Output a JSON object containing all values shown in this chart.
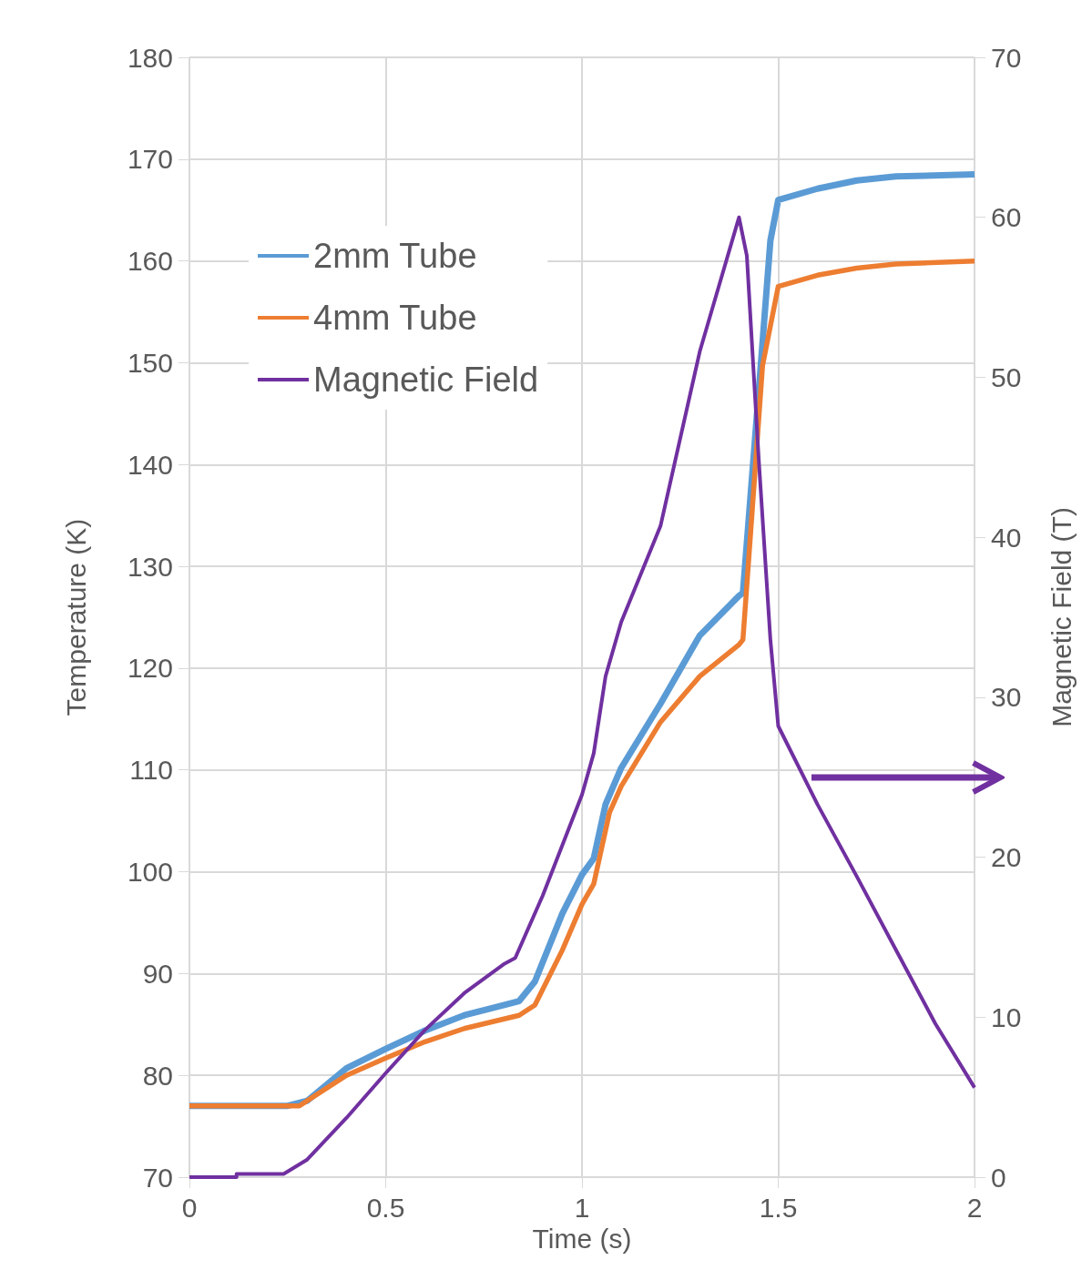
{
  "chart_data": {
    "type": "line",
    "xlabel": "Time (s)",
    "ylabel": "Temperature (K)",
    "y2label": "Magnetic Field (T)",
    "xlim": [
      0,
      2
    ],
    "xticks": [
      0,
      0.5,
      1,
      1.5,
      2
    ],
    "ylim": [
      70,
      180
    ],
    "yticks": [
      70,
      80,
      90,
      100,
      110,
      120,
      130,
      140,
      150,
      160,
      170,
      180
    ],
    "y2lim": [
      0,
      70
    ],
    "y2ticks": [
      0,
      10,
      20,
      30,
      40,
      50,
      60,
      70
    ],
    "grid": true,
    "legend": "top left",
    "marker": "none",
    "line_style": "solid",
    "series": [
      {
        "name": "2mm Tube",
        "color": "#5b9bd5",
        "x": [
          0,
          0.25,
          0.3,
          0.4,
          0.5,
          0.6,
          0.7,
          0.8,
          0.84,
          0.88,
          0.95,
          1.0,
          1.03,
          1.06,
          1.1,
          1.2,
          1.3,
          1.4,
          1.41,
          1.45,
          1.48,
          1.5,
          1.6,
          1.7,
          1.8,
          2
        ],
        "values": [
          77,
          77,
          77.5,
          80.7,
          82.6,
          84.4,
          85.9,
          86.9,
          87.3,
          89.2,
          95.9,
          99.7,
          101.3,
          106.6,
          110.2,
          116.5,
          123.2,
          127.1,
          127.4,
          147,
          162,
          166,
          167.1,
          167.9,
          168.3,
          168.5
        ]
      },
      {
        "name": "4mm Tube",
        "color": "#ed7d31",
        "x": [
          0,
          0.28,
          0.4,
          0.5,
          0.6,
          0.7,
          0.84,
          0.88,
          0.95,
          1.0,
          1.03,
          1.07,
          1.1,
          1.2,
          1.3,
          1.4,
          1.41,
          1.43,
          1.46,
          1.5,
          1.6,
          1.7,
          1.8,
          2
        ],
        "values": [
          77,
          77,
          80,
          81.7,
          83.3,
          84.6,
          85.9,
          86.9,
          92.3,
          96.8,
          98.8,
          105.8,
          108.4,
          114.7,
          119.2,
          122.3,
          122.8,
          133.5,
          149.7,
          157.5,
          158.6,
          159.3,
          159.7,
          160
        ]
      },
      {
        "name": "Magnetic Field",
        "color": "#7030a0",
        "axis": "y2",
        "x": [
          0,
          0.12,
          0.12,
          0.24,
          0.3,
          0.4,
          0.5,
          0.6,
          0.7,
          0.8,
          0.83,
          0.9,
          1.0,
          1.03,
          1.06,
          1.1,
          1.2,
          1.3,
          1.4,
          1.42,
          1.45,
          1.48,
          1.5,
          1.6,
          1.7,
          1.8,
          1.9,
          2
        ],
        "values": [
          0,
          0,
          0.2,
          0.2,
          1.1,
          3.7,
          6.5,
          9.2,
          11.5,
          13.3,
          13.7,
          17.6,
          23.9,
          26.5,
          31.3,
          34.7,
          40.7,
          51.6,
          60,
          57.6,
          45,
          33.6,
          28.2,
          23.3,
          18.8,
          14.2,
          9.6,
          5.6
        ]
      }
    ]
  }
}
